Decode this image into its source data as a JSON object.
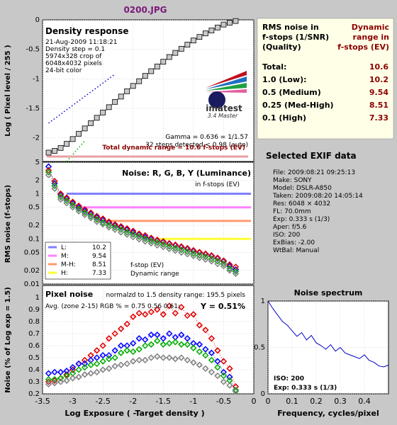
{
  "title": "0200.JPG",
  "density": {
    "heading": "Density response",
    "info": [
      "21-Aug-2009 11:18:21",
      "Density step = 0.1",
      "5974x328 crop of",
      "6048x4032 pixels",
      "24-bit color"
    ],
    "logo": "imatest",
    "logo_sub": "3.4  Master",
    "gamma_text": "Gamma = 0.636 = 1/1.57",
    "steps_text": "32 steps detected < 0.98 (auto)",
    "total_text": "Total dynamic range = 10.6 f-stops (EV)",
    "ylabel": "Log ( Pixel level / 255 )"
  },
  "noise": {
    "heading": "Noise: R, G, B, Y (Luminance)",
    "sub": "in f-stops (EV)",
    "ylabel": "RMS noise (f-stops)",
    "legend": [
      {
        "label": "L:",
        "value": "10.2",
        "color": "#8080ff"
      },
      {
        "label": "M:",
        "value": "9.54",
        "color": "#ff80ff"
      },
      {
        "label": "M-H:",
        "value": "8.51",
        "color": "#ff9a70"
      },
      {
        "label": "H:",
        "value": "7.33",
        "color": "#ffff30"
      }
    ],
    "legend_note1": "f-stop (EV)",
    "legend_note2": "Dynamic range"
  },
  "pixel": {
    "heading": "Pixel noise",
    "norm_text": "normalzd to 1.5 density range: 195.5 pixels",
    "avg_text": "Avg. (zone 2-15) RGB % = 0.75  0.56  0.61;",
    "y_text": "Y = 0.51%",
    "ylabel": "Noise (% of Log exp = 1.5)",
    "xlabel": "Log Exposure ( -Target density )"
  },
  "rms_table": {
    "head_left": [
      "RMS noise in",
      "f-stops (1/SNR)",
      "(Quality)"
    ],
    "head_right": [
      "Dynamic",
      "range in",
      "f-stops (EV)"
    ],
    "rows": [
      {
        "name": "Total:",
        "value": "10.6"
      },
      {
        "name": "1.0   (Low):",
        "value": "10.2"
      },
      {
        "name": "0.5   (Medium)",
        "value": "9.54"
      },
      {
        "name": "0.25 (Med-High)",
        "value": "8.51"
      },
      {
        "name": "0.1   (High)",
        "value": "7.33"
      }
    ]
  },
  "exif": {
    "heading": "Selected EXIF data",
    "lines": [
      "File:  2009:08:21 09:25:13",
      "Make:  SONY",
      "Model: DSLR-A850",
      "Taken: 2009:08:20 14:05:14",
      "Res:   6048 × 4032",
      "FL:  70.0mm",
      "Exp:   0.333 s   (1/3)",
      "Aper:  f/5.6",
      "ISO:   200",
      "ExBias: -2.00",
      "WtBal: Manual"
    ]
  },
  "spectrum": {
    "heading": "Noise spectrum",
    "xlabel": "Frequency, cycles/pixel",
    "iso_text": "ISO:   200",
    "exp_text": "Exp:   0.333 s   (1/3)"
  },
  "chart_data": [
    {
      "type": "scatter",
      "name": "density-response",
      "title": "Density response",
      "ylabel": "Log ( Pixel level / 255 )",
      "xlim": [
        -3.5,
        0
      ],
      "ylim": [
        -2.4,
        0
      ],
      "xticks": [
        -3.5,
        -3,
        -2.5,
        -2,
        -1.5,
        -1,
        -0.5,
        0
      ],
      "yticks": [
        0,
        -0.5,
        -1,
        -1.5,
        -2
      ],
      "ytick_labels": [
        "0",
        "-0.5",
        "-1",
        "-1.5",
        "-2"
      ],
      "x": [
        -3.4,
        -3.3,
        -3.2,
        -3.1,
        -3.0,
        -2.9,
        -2.8,
        -2.7,
        -2.6,
        -2.5,
        -2.4,
        -2.3,
        -2.2,
        -2.1,
        -2.0,
        -1.9,
        -1.8,
        -1.7,
        -1.6,
        -1.5,
        -1.4,
        -1.3,
        -1.2,
        -1.1,
        -1.0,
        -0.9,
        -0.8,
        -0.7,
        -0.6,
        -0.5,
        -0.4,
        -0.3
      ],
      "y": [
        -2.25,
        -2.22,
        -2.17,
        -2.1,
        -2.02,
        -1.93,
        -1.84,
        -1.75,
        -1.66,
        -1.57,
        -1.48,
        -1.39,
        -1.3,
        -1.21,
        -1.12,
        -1.04,
        -0.95,
        -0.87,
        -0.79,
        -0.71,
        -0.63,
        -0.56,
        -0.49,
        -0.42,
        -0.35,
        -0.29,
        -0.23,
        -0.18,
        -0.13,
        -0.08,
        -0.05,
        -0.02
      ],
      "fit_line": {
        "x": [
          -3.4,
          -2.3
        ],
        "y": [
          -1.75,
          -0.92
        ]
      },
      "green_line": {
        "x": [
          -3.1,
          -2.8
        ],
        "y": [
          -2.4,
          -2.05
        ]
      }
    },
    {
      "type": "scatter",
      "name": "rms-noise",
      "title": "Noise: R, G, B, Y (Luminance)",
      "ylabel": "RMS noise (f-stops)",
      "scale": "log",
      "xlim": [
        -3.5,
        0
      ],
      "ylim": [
        0.01,
        5
      ],
      "yticks": [
        5,
        2,
        1,
        0.5,
        0.2,
        0.1,
        0.05,
        0.02,
        0.01
      ],
      "ytick_labels": [
        "5",
        "2",
        "1",
        "0.5",
        "0.2",
        "0.1",
        "0.05",
        "0.02",
        "0.01"
      ],
      "x": [
        -3.4,
        -3.3,
        -3.2,
        -3.1,
        -3.0,
        -2.9,
        -2.8,
        -2.7,
        -2.6,
        -2.5,
        -2.4,
        -2.3,
        -2.2,
        -2.1,
        -2.0,
        -1.9,
        -1.8,
        -1.7,
        -1.6,
        -1.5,
        -1.4,
        -1.3,
        -1.2,
        -1.1,
        -1.0,
        -0.9,
        -0.8,
        -0.7,
        -0.6,
        -0.5,
        -0.4,
        -0.3
      ],
      "series": [
        {
          "color": "#0000ff",
          "values": [
            4.0,
            1.7,
            0.95,
            0.78,
            0.62,
            0.5,
            0.42,
            0.36,
            0.3,
            0.26,
            0.23,
            0.2,
            0.18,
            0.16,
            0.14,
            0.125,
            0.11,
            0.1,
            0.092,
            0.085,
            0.078,
            0.072,
            0.066,
            0.06,
            0.054,
            0.05,
            0.046,
            0.042,
            0.037,
            0.032,
            0.025,
            0.021
          ]
        },
        {
          "color": "#dd0000",
          "values": [
            3.3,
            1.9,
            1.0,
            0.82,
            0.66,
            0.54,
            0.45,
            0.38,
            0.32,
            0.28,
            0.24,
            0.21,
            0.19,
            0.17,
            0.15,
            0.13,
            0.12,
            0.105,
            0.095,
            0.088,
            0.08,
            0.074,
            0.068,
            0.062,
            0.056,
            0.051,
            0.047,
            0.043,
            0.038,
            0.033,
            0.027,
            0.024
          ]
        },
        {
          "color": "#00aa00",
          "values": [
            3.0,
            1.5,
            0.85,
            0.7,
            0.56,
            0.46,
            0.38,
            0.32,
            0.27,
            0.23,
            0.2,
            0.18,
            0.16,
            0.14,
            0.125,
            0.112,
            0.1,
            0.09,
            0.082,
            0.075,
            0.068,
            0.062,
            0.057,
            0.052,
            0.047,
            0.043,
            0.04,
            0.036,
            0.032,
            0.028,
            0.022,
            0.019
          ]
        },
        {
          "color": "#808080",
          "values": [
            2.6,
            1.3,
            0.75,
            0.62,
            0.5,
            0.41,
            0.34,
            0.29,
            0.24,
            0.21,
            0.18,
            0.16,
            0.14,
            0.125,
            0.11,
            0.098,
            0.088,
            0.08,
            0.072,
            0.066,
            0.06,
            0.055,
            0.05,
            0.046,
            0.042,
            0.038,
            0.035,
            0.032,
            0.028,
            0.025,
            0.02,
            0.017
          ]
        }
      ],
      "levels": [
        {
          "value": 1.0,
          "x_from": -3.1,
          "color": "#8080ff"
        },
        {
          "value": 0.5,
          "x_from": -2.9,
          "color": "#ff80ff"
        },
        {
          "value": 0.25,
          "x_from": -2.6,
          "color": "#ff9a70"
        },
        {
          "value": 0.1,
          "x_from": -1.6,
          "color": "#ffff30"
        }
      ]
    },
    {
      "type": "scatter",
      "name": "pixel-noise",
      "title": "Pixel noise",
      "ylabel": "Noise (% of Log exp = 1.5)",
      "xlabel": "Log Exposure ( -Target density )",
      "xlim": [
        -3.5,
        0
      ],
      "ylim": [
        0.2,
        1.1
      ],
      "xticks": [
        -3.5,
        -3,
        -2.5,
        -2,
        -1.5,
        -1,
        -0.5,
        0
      ],
      "xtick_labels": [
        "-3.5",
        "-3",
        "-2.5",
        "-2",
        "-1.5",
        "-1",
        "-0.5",
        "0"
      ],
      "yticks": [
        0.2,
        0.3,
        0.4,
        0.5,
        0.6,
        0.7,
        0.8,
        0.9,
        1.0
      ],
      "ytick_labels": [
        "0.2",
        "0.3",
        "0.4",
        "0.5",
        "0.6",
        "0.7",
        "0.8",
        "0.9",
        "1"
      ],
      "x": [
        -3.4,
        -3.3,
        -3.2,
        -3.1,
        -3.0,
        -2.9,
        -2.8,
        -2.7,
        -2.6,
        -2.5,
        -2.4,
        -2.3,
        -2.2,
        -2.1,
        -2.0,
        -1.9,
        -1.8,
        -1.7,
        -1.6,
        -1.5,
        -1.4,
        -1.3,
        -1.2,
        -1.1,
        -1.0,
        -0.9,
        -0.8,
        -0.7,
        -0.6,
        -0.5,
        -0.4,
        -0.3
      ],
      "series": [
        {
          "color": "#dd0000",
          "values": [
            0.3,
            0.31,
            0.33,
            0.36,
            0.4,
            0.45,
            0.48,
            0.52,
            0.56,
            0.6,
            0.66,
            0.7,
            0.74,
            0.78,
            0.84,
            0.87,
            0.86,
            0.88,
            0.9,
            0.86,
            0.93,
            0.87,
            0.92,
            0.85,
            0.86,
            0.77,
            0.73,
            0.66,
            0.56,
            0.47,
            0.41,
            0.26
          ]
        },
        {
          "color": "#0000ff",
          "values": [
            0.37,
            0.38,
            0.38,
            0.39,
            0.42,
            0.45,
            0.45,
            0.48,
            0.5,
            0.52,
            0.52,
            0.56,
            0.6,
            0.6,
            0.62,
            0.66,
            0.65,
            0.69,
            0.69,
            0.66,
            0.7,
            0.67,
            0.69,
            0.66,
            0.62,
            0.61,
            0.57,
            0.54,
            0.47,
            0.38,
            0.34,
            0.23
          ]
        },
        {
          "color": "#00aa00",
          "values": [
            0.32,
            0.32,
            0.33,
            0.35,
            0.37,
            0.4,
            0.42,
            0.44,
            0.45,
            0.47,
            0.49,
            0.5,
            0.54,
            0.56,
            0.55,
            0.57,
            0.6,
            0.61,
            0.64,
            0.61,
            0.62,
            0.63,
            0.61,
            0.61,
            0.58,
            0.55,
            0.52,
            0.48,
            0.42,
            0.35,
            0.31,
            0.23
          ]
        },
        {
          "color": "#808080",
          "values": [
            0.28,
            0.29,
            0.3,
            0.31,
            0.33,
            0.34,
            0.36,
            0.37,
            0.38,
            0.4,
            0.41,
            0.43,
            0.44,
            0.45,
            0.47,
            0.48,
            0.48,
            0.5,
            0.51,
            0.5,
            0.5,
            0.49,
            0.5,
            0.48,
            0.46,
            0.44,
            0.41,
            0.38,
            0.35,
            0.3,
            0.27,
            0.22
          ]
        }
      ]
    },
    {
      "type": "line",
      "name": "noise-spectrum",
      "title": "Noise spectrum",
      "xlabel": "Frequency, cycles/pixel",
      "xlim": [
        0,
        0.5
      ],
      "ylim": [
        0,
        1
      ],
      "xticks": [
        0,
        0.1,
        0.2,
        0.3,
        0.4
      ],
      "xtick_labels": [
        "0",
        "0.1",
        "0.2",
        "0.3",
        "0.4"
      ],
      "yticks": [
        0,
        0.5,
        1
      ],
      "ytick_labels": [
        "0",
        "0.5",
        "1"
      ],
      "x": [
        0,
        0.02,
        0.04,
        0.06,
        0.08,
        0.1,
        0.12,
        0.14,
        0.16,
        0.18,
        0.2,
        0.22,
        0.24,
        0.26,
        0.28,
        0.3,
        0.32,
        0.34,
        0.36,
        0.38,
        0.4,
        0.42,
        0.44,
        0.46,
        0.48,
        0.5
      ],
      "y": [
        1.0,
        0.92,
        0.85,
        0.78,
        0.74,
        0.68,
        0.62,
        0.66,
        0.58,
        0.63,
        0.55,
        0.52,
        0.48,
        0.53,
        0.46,
        0.5,
        0.44,
        0.42,
        0.4,
        0.38,
        0.42,
        0.36,
        0.34,
        0.3,
        0.29,
        0.31
      ]
    }
  ]
}
